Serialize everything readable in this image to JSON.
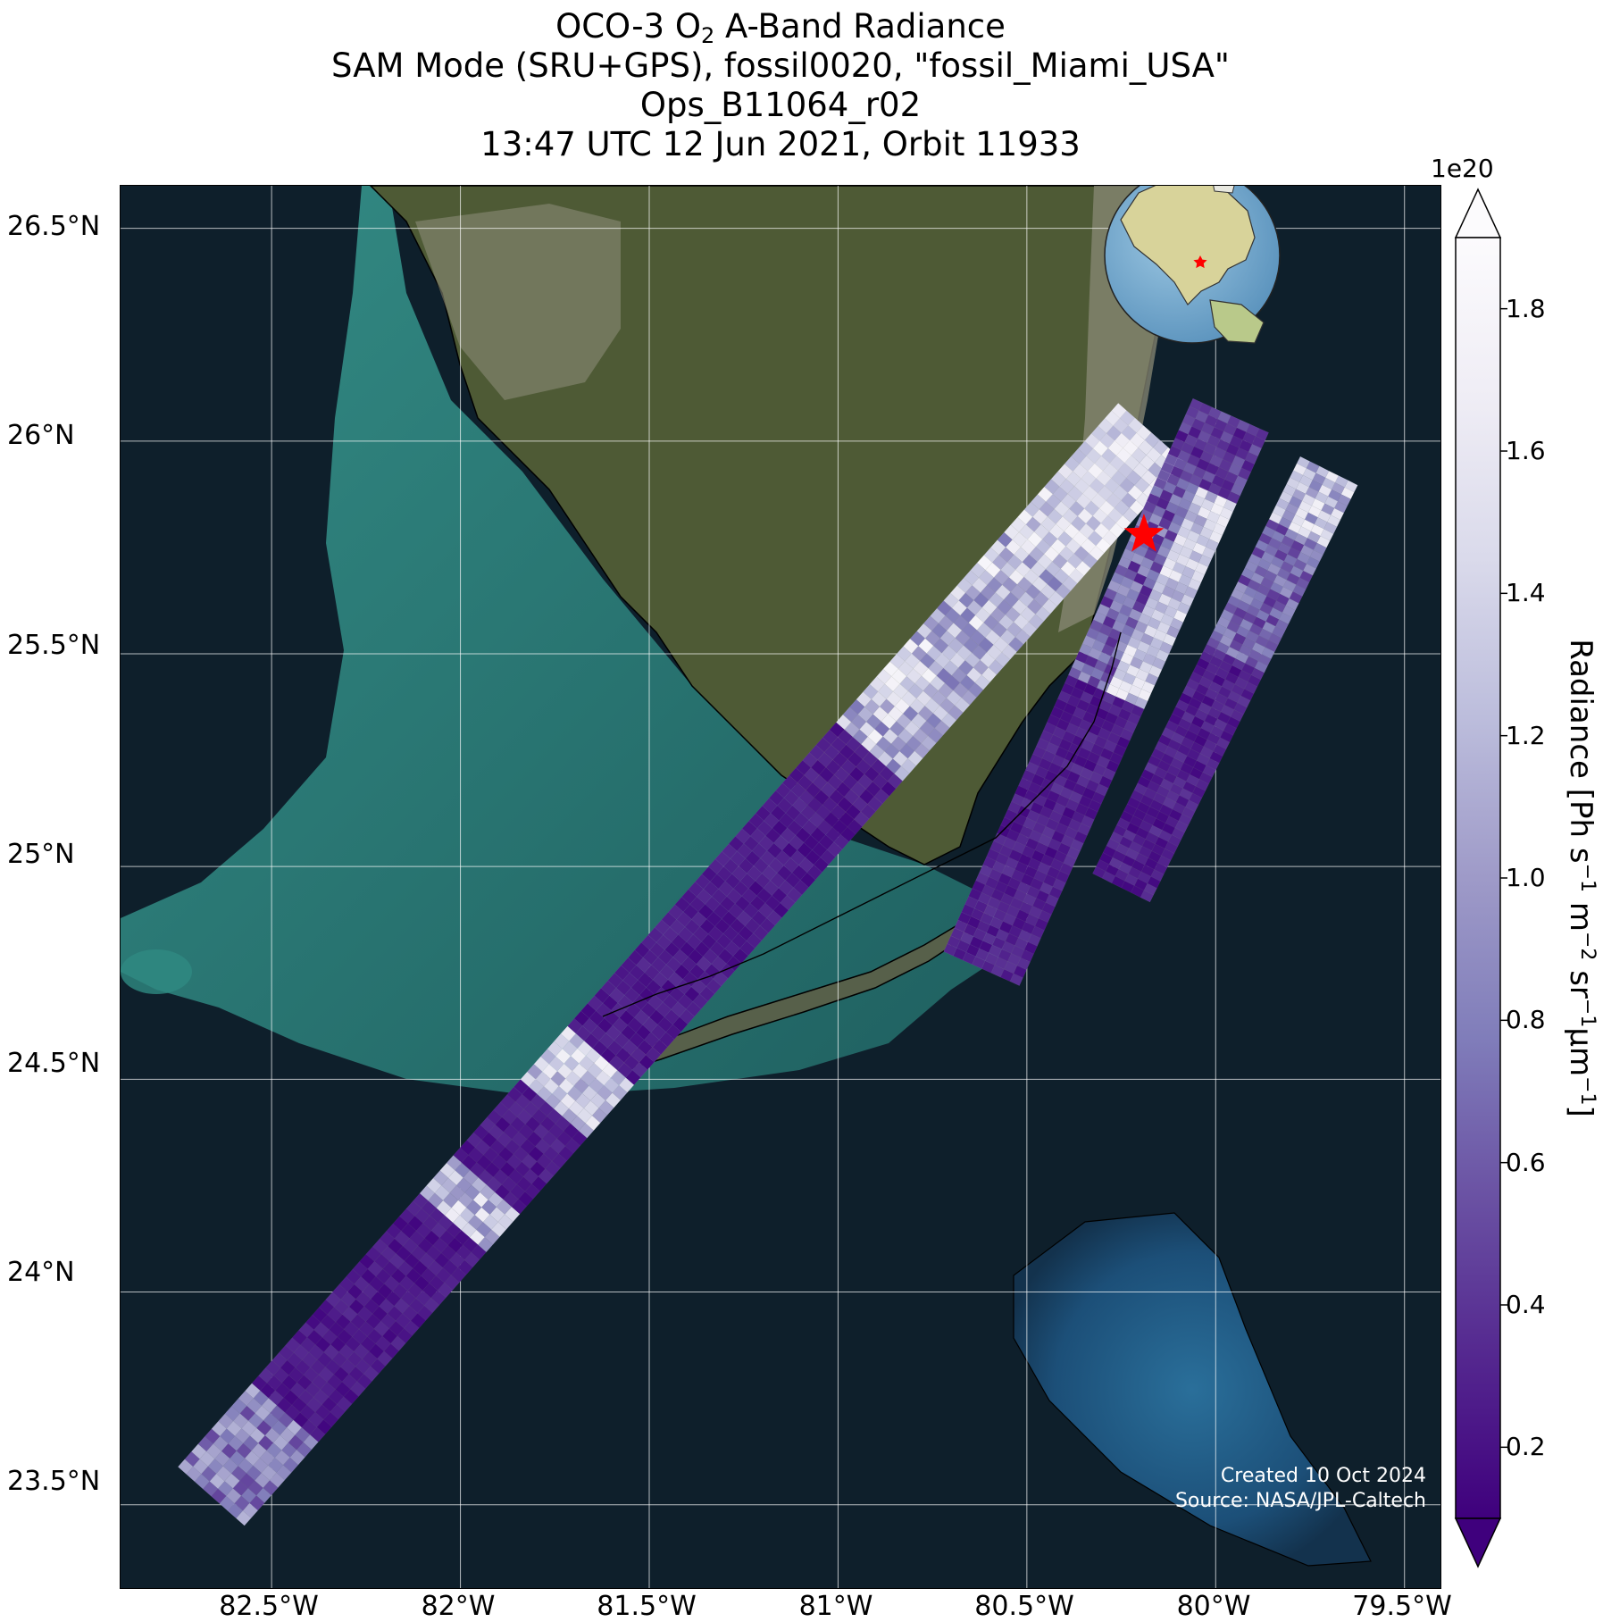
{
  "title": {
    "line1_prefix": "OCO-3 O",
    "line1_sub": "2",
    "line1_suffix": " A-Band Radiance",
    "line2": "SAM Mode (SRU+GPS), fossil0020, \"fossil_Miami_USA\"",
    "line3": "Ops_B11064_r02",
    "line4": "13:47 UTC 12 Jun 2021, Orbit 11933"
  },
  "map": {
    "extent": {
      "lon": [
        -82.9,
        -79.4
      ],
      "lat": [
        23.3,
        26.6
      ]
    },
    "lat_ticks": [
      {
        "value": 26.5,
        "label": "26.5°N"
      },
      {
        "value": 26.0,
        "label": "26°N"
      },
      {
        "value": 25.5,
        "label": "25.5°N"
      },
      {
        "value": 25.0,
        "label": "25°N"
      },
      {
        "value": 24.5,
        "label": "24.5°N"
      },
      {
        "value": 24.0,
        "label": "24°N"
      },
      {
        "value": 23.5,
        "label": "23.5°N"
      }
    ],
    "lon_ticks": [
      {
        "value": -82.5,
        "label": "82.5°W"
      },
      {
        "value": -82.0,
        "label": "82°W"
      },
      {
        "value": -81.5,
        "label": "81.5°W"
      },
      {
        "value": -81.0,
        "label": "81°W"
      },
      {
        "value": -80.5,
        "label": "80.5°W"
      },
      {
        "value": -80.0,
        "label": "80°W"
      },
      {
        "value": -79.5,
        "label": "79.5°W"
      }
    ],
    "target": {
      "name": "fossil_Miami_USA",
      "lon": -80.19,
      "lat": 25.78,
      "color": "#ff0000"
    },
    "colors": {
      "ocean": "#0e1f2b",
      "shelf": "#2f8a82",
      "land": "#4e5a35",
      "urban": "#8a8a76",
      "grid": "#ffffff"
    },
    "credit_line1": "Created 10 Oct 2024",
    "credit_line2": "Source: NASA/JPL-Caltech"
  },
  "colorbar": {
    "label_prefix": "Radiance [Ph s",
    "exponent": "1e20",
    "min": 0.1,
    "max": 1.9,
    "extend": "both",
    "colormap": "Purples_r",
    "colors": [
      "#3f007d",
      "#54278f",
      "#6a51a3",
      "#807dba",
      "#9e9ac8",
      "#bcbddc",
      "#dadaeb",
      "#efedf5",
      "#fcfbfd"
    ],
    "ticks": [
      {
        "value": 0.2,
        "label": "0.2"
      },
      {
        "value": 0.4,
        "label": "0.4"
      },
      {
        "value": 0.6,
        "label": "0.6"
      },
      {
        "value": 0.8,
        "label": "0.8"
      },
      {
        "value": 1.0,
        "label": "1.0"
      },
      {
        "value": 1.2,
        "label": "1.2"
      },
      {
        "value": 1.4,
        "label": "1.4"
      },
      {
        "value": 1.6,
        "label": "1.6"
      },
      {
        "value": 1.8,
        "label": "1.8"
      }
    ]
  }
}
